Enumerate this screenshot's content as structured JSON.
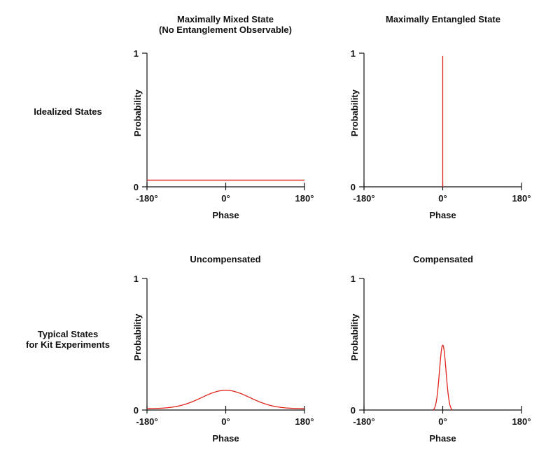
{
  "row_labels": [
    {
      "lines": [
        "Idealized States"
      ]
    },
    {
      "lines": [
        "Typical States",
        "for Kit Experiments"
      ]
    }
  ],
  "chart_data": [
    {
      "type": "line",
      "title_lines": [
        "Maximally Mixed State",
        "(No Entanglement Observable)"
      ],
      "xlabel": "Phase",
      "ylabel": "Probability",
      "xlim": [
        -180,
        180
      ],
      "ylim": [
        0,
        1
      ],
      "x_ticks": [
        "-180°",
        "0°",
        "180°"
      ],
      "y_ticks": [
        "0",
        "1"
      ],
      "series": [
        {
          "shape": "flat",
          "level": 0.05
        }
      ],
      "line_color": "#e0241b"
    },
    {
      "type": "line",
      "title_lines": [
        "Maximally Entangled State"
      ],
      "xlabel": "Phase",
      "ylabel": "Probability",
      "xlim": [
        -180,
        180
      ],
      "ylim": [
        0,
        1
      ],
      "x_ticks": [
        "-180°",
        "0°",
        "180°"
      ],
      "y_ticks": [
        "0",
        "1"
      ],
      "series": [
        {
          "shape": "spike",
          "center": 0,
          "peak": 0.98
        }
      ],
      "line_color": "#e0241b"
    },
    {
      "type": "line",
      "title_lines": [
        "Uncompensated"
      ],
      "xlabel": "Phase",
      "ylabel": "Probability",
      "xlim": [
        -180,
        180
      ],
      "ylim": [
        0,
        1
      ],
      "x_ticks": [
        "-180°",
        "0°",
        "180°"
      ],
      "y_ticks": [
        "0",
        "1"
      ],
      "series": [
        {
          "shape": "gaussian",
          "center": 0,
          "peak": 0.15,
          "baseline": 0.01,
          "sigma": 55
        }
      ],
      "line_color": "#e0241b"
    },
    {
      "type": "line",
      "title_lines": [
        "Compensated"
      ],
      "xlabel": "Phase",
      "ylabel": "Probability",
      "xlim": [
        -180,
        180
      ],
      "ylim": [
        0,
        1
      ],
      "x_ticks": [
        "-180°",
        "0°",
        "180°"
      ],
      "y_ticks": [
        "0",
        "1"
      ],
      "series": [
        {
          "shape": "gaussian",
          "center": 0,
          "peak": 0.5,
          "baseline": 0,
          "sigma": 7.5,
          "support": [
            -22,
            22
          ]
        }
      ],
      "line_color": "#e0241b"
    }
  ]
}
